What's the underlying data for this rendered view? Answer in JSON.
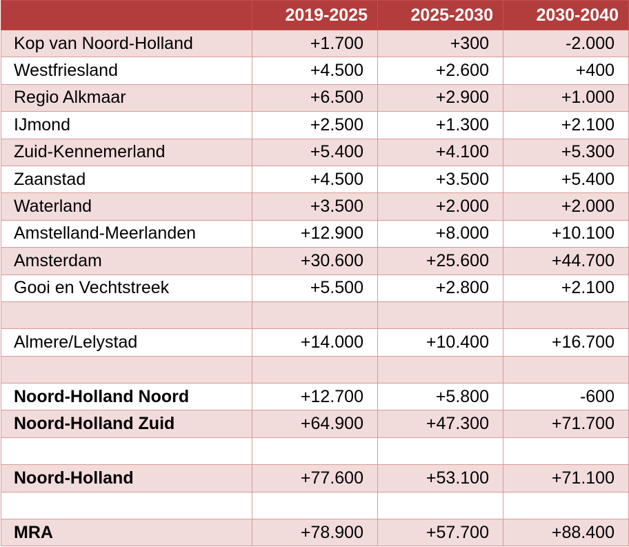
{
  "table": {
    "headers": [
      "",
      "2019-2025",
      "2025-2030",
      "2030-2040"
    ],
    "rows": [
      {
        "label": "Kop van Noord-Holland",
        "values": [
          "+1.700",
          "+300",
          "-2.000"
        ],
        "bold": false
      },
      {
        "label": "Westfriesland",
        "values": [
          "+4.500",
          "+2.600",
          "+400"
        ],
        "bold": false
      },
      {
        "label": "Regio Alkmaar",
        "values": [
          "+6.500",
          "+2.900",
          "+1.000"
        ],
        "bold": false
      },
      {
        "label": "IJmond",
        "values": [
          "+2.500",
          "+1.300",
          "+2.100"
        ],
        "bold": false
      },
      {
        "label": "Zuid-Kennemerland",
        "values": [
          "+5.400",
          "+4.100",
          "+5.300"
        ],
        "bold": false
      },
      {
        "label": "Zaanstad",
        "values": [
          "+4.500",
          "+3.500",
          "+5.400"
        ],
        "bold": false
      },
      {
        "label": "Waterland",
        "values": [
          "+3.500",
          "+2.000",
          "+2.000"
        ],
        "bold": false
      },
      {
        "label": "Amstelland-Meerlanden",
        "values": [
          "+12.900",
          "+8.000",
          "+10.100"
        ],
        "bold": false
      },
      {
        "label": "Amsterdam",
        "values": [
          "+30.600",
          "+25.600",
          "+44.700"
        ],
        "bold": false
      },
      {
        "label": "Gooi en Vechtstreek",
        "values": [
          "+5.500",
          "+2.800",
          "+2.100"
        ],
        "bold": false
      },
      {
        "label": "",
        "values": [
          "",
          "",
          ""
        ],
        "bold": false
      },
      {
        "label": "Almere/Lelystad",
        "values": [
          "+14.000",
          "+10.400",
          "+16.700"
        ],
        "bold": false
      },
      {
        "label": "",
        "values": [
          "",
          "",
          ""
        ],
        "bold": false
      },
      {
        "label": "Noord-Holland Noord",
        "values": [
          "+12.700",
          "+5.800",
          "-600"
        ],
        "bold": true
      },
      {
        "label": "Noord-Holland Zuid",
        "values": [
          "+64.900",
          "+47.300",
          "+71.700"
        ],
        "bold": true
      },
      {
        "label": "",
        "values": [
          "",
          "",
          ""
        ],
        "bold": false
      },
      {
        "label": "Noord-Holland",
        "values": [
          "+77.600",
          "+53.100",
          "+71.100"
        ],
        "bold": true
      },
      {
        "label": "",
        "values": [
          "",
          "",
          ""
        ],
        "bold": false
      },
      {
        "label": "MRA",
        "values": [
          "+78.900",
          "+57.700",
          "+88.400"
        ],
        "bold": true
      }
    ]
  },
  "colors": {
    "header_bg": "#b33d3c",
    "header_text": "#ffffff",
    "row_shade": "#f2dbdb",
    "row_plain": "#ffffff",
    "border": "#d79a98"
  }
}
